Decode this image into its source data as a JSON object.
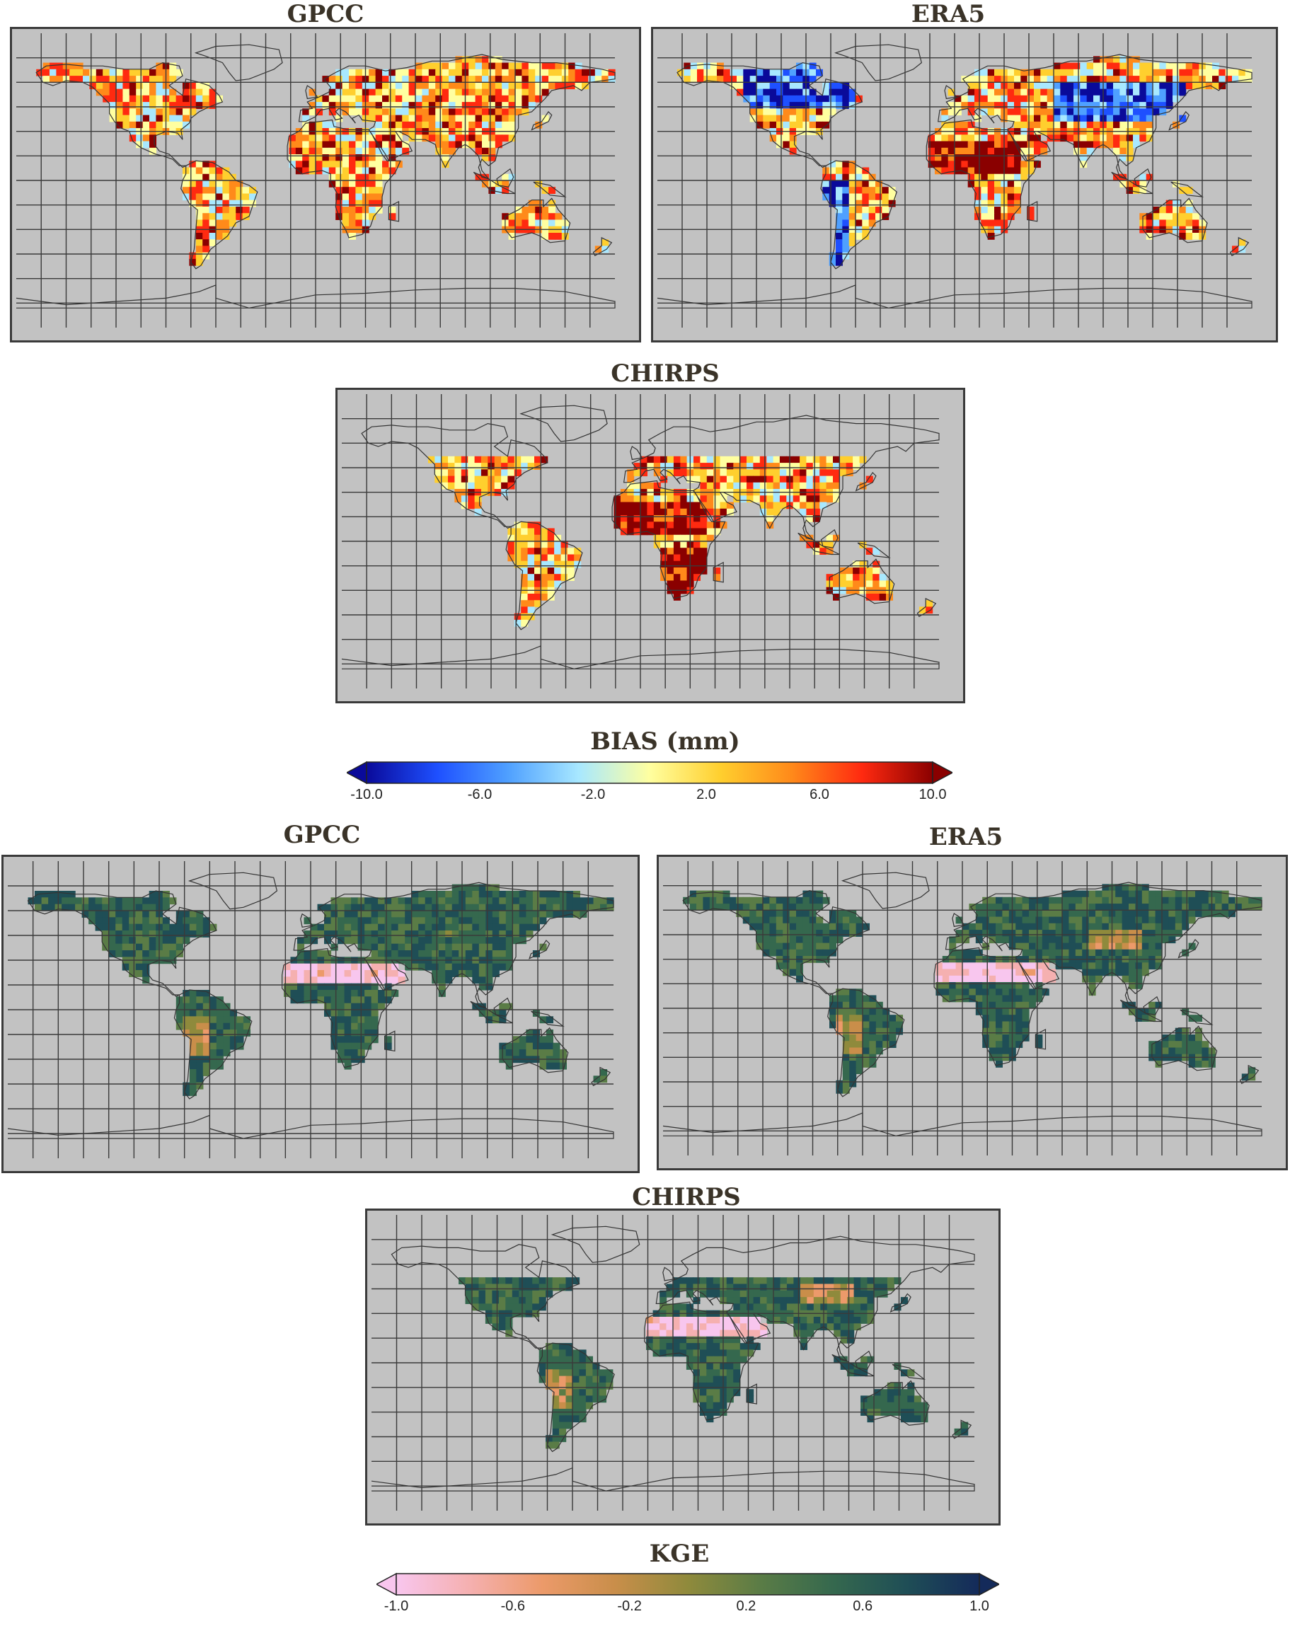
{
  "bias_section": {
    "panels": [
      {
        "id": "gpcc",
        "title": "GPCC"
      },
      {
        "id": "era5",
        "title": "ERA5"
      },
      {
        "id": "chirps",
        "title": "CHIRPS"
      }
    ],
    "colorbar": {
      "title": "BIAS (mm)",
      "ticks": [
        "-10.0",
        "-6.0",
        "-2.0",
        "2.0",
        "6.0",
        "10.0"
      ],
      "range": [
        -10,
        10
      ],
      "colors": [
        "#0a0a9a",
        "#1e50ff",
        "#4fa0ff",
        "#a8e8ff",
        "#ffffa0",
        "#ffcf2e",
        "#ff8a1a",
        "#ff2a10",
        "#8a0000"
      ]
    }
  },
  "kge_section": {
    "panels": [
      {
        "id": "gpcc",
        "title": "GPCC"
      },
      {
        "id": "era5",
        "title": "ERA5"
      },
      {
        "id": "chirps",
        "title": "CHIRPS"
      }
    ],
    "colorbar": {
      "title": "KGE",
      "ticks": [
        "-1.0",
        "-0.6",
        "-0.2",
        "0.2",
        "0.6",
        "1.0"
      ],
      "range": [
        -1,
        1
      ],
      "colors": [
        "#f8c6ee",
        "#f5b0b0",
        "#ec9a6a",
        "#c98e4a",
        "#8f8a3c",
        "#5a7c46",
        "#35684e",
        "#1f4e56",
        "#142a5a"
      ]
    }
  },
  "colors": {
    "ocean": "#c2c2c2",
    "grid": "#3a3a3a"
  }
}
